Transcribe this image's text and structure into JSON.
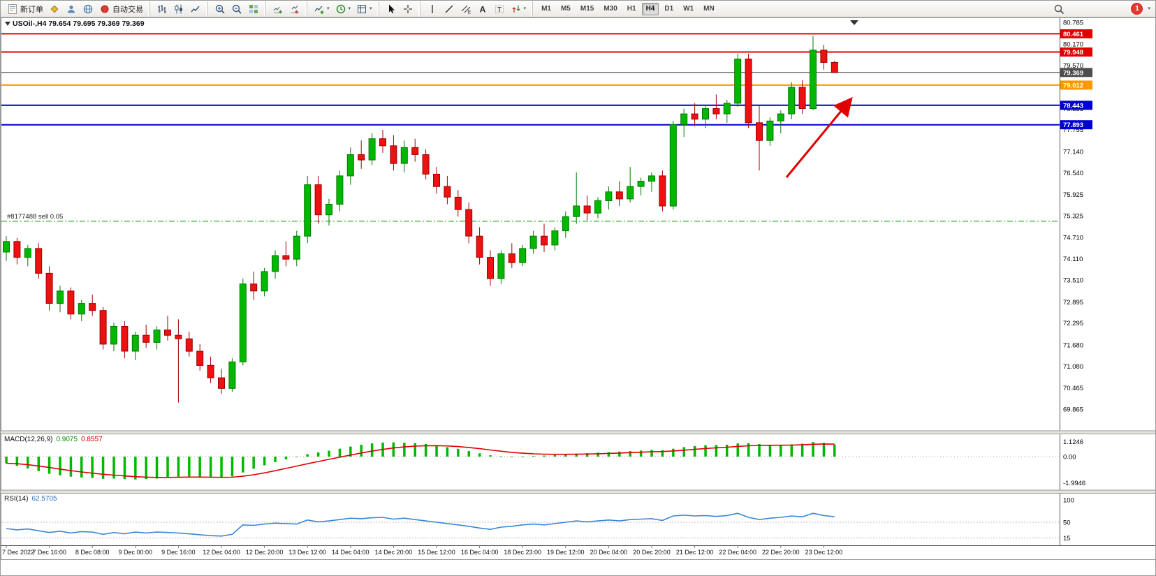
{
  "toolbar": {
    "buttons": [
      {
        "icon": "new-order",
        "label": "新订单",
        "group": 1
      },
      {
        "icon": "mql5-market",
        "group": 1
      },
      {
        "icon": "accounts",
        "group": 1
      },
      {
        "icon": "web-terminal",
        "group": 1
      },
      {
        "icon": "auto-trading",
        "label": "自动交易",
        "group": 1
      },
      {
        "icon": "bar-chart",
        "group": 2
      },
      {
        "icon": "candlestick-chart",
        "group": 2
      },
      {
        "icon": "line-chart",
        "group": 2
      },
      {
        "icon": "zoom-in",
        "group": 3
      },
      {
        "icon": "zoom-out",
        "group": 3
      },
      {
        "icon": "tile-windows",
        "group": 3
      },
      {
        "icon": "auto-scroll",
        "group": 4
      },
      {
        "icon": "chart-shift",
        "group": 4
      },
      {
        "icon": "indicators",
        "group": 5,
        "dropdown": true
      },
      {
        "icon": "periods",
        "group": 5,
        "dropdown": true
      },
      {
        "icon": "templates",
        "group": 5,
        "dropdown": true
      },
      {
        "icon": "cursor",
        "group": 6
      },
      {
        "icon": "crosshair",
        "group": 6
      },
      {
        "icon": "vertical-line",
        "group": 7
      },
      {
        "icon": "trendline",
        "group": 7
      },
      {
        "icon": "equidistant-channel",
        "group": 7
      },
      {
        "icon": "text",
        "group": 7
      },
      {
        "icon": "text-label",
        "group": 7
      },
      {
        "icon": "arrows",
        "group": 7,
        "dropdown": true
      }
    ],
    "timeframes": [
      "M1",
      "M5",
      "M15",
      "M30",
      "H1",
      "H4",
      "D1",
      "W1",
      "MN"
    ],
    "active_timeframe": "H4",
    "notification_count": "1"
  },
  "chart": {
    "title": "USOil-,H4 79.654 79.695 79.369 79.369",
    "position_label": "#8177488 sell 0.05",
    "price_axis_labels": [
      "80.785",
      "80.170",
      "79.570",
      "78.955",
      "78.355",
      "77.755",
      "77.140",
      "76.540",
      "75.925",
      "75.325",
      "74.710",
      "74.110",
      "73.510",
      "72.895",
      "72.295",
      "71.680",
      "71.080",
      "70.465",
      "69.865"
    ],
    "price_tags": [
      {
        "label": "80.461",
        "price": 80.461,
        "color": "#e00000"
      },
      {
        "label": "79.948",
        "price": 79.948,
        "color": "#e00000"
      },
      {
        "label": "79.369",
        "price": 79.369,
        "color": "#4d4d4d"
      },
      {
        "label": "79.012",
        "price": 79.012,
        "color": "#ff9800"
      },
      {
        "label": "78.443",
        "price": 78.443,
        "color": "#0000cd"
      },
      {
        "label": "77.893",
        "price": 77.893,
        "color": "#0000cd"
      }
    ],
    "hlines": [
      {
        "price": 80.461,
        "color": "#e00000",
        "width": 2,
        "dash": ""
      },
      {
        "price": 79.948,
        "color": "#e00000",
        "width": 2,
        "dash": ""
      },
      {
        "price": 79.369,
        "color": "#3d3d3d",
        "width": 1,
        "dash": ""
      },
      {
        "price": 79.012,
        "color": "#ff9800",
        "width": 2,
        "dash": ""
      },
      {
        "price": 78.443,
        "color": "#0000cd",
        "width": 2,
        "dash": ""
      },
      {
        "price": 77.893,
        "color": "#0000cd",
        "width": 2,
        "dash": ""
      },
      {
        "price": 75.17,
        "color": "#00a000",
        "width": 1,
        "dash": "8 3 2 3"
      }
    ],
    "colors": {
      "up": "#00b800",
      "up_stroke": "#007a00",
      "down": "#ee1111",
      "down_stroke": "#9e0000",
      "macd_hist": "#00b800",
      "macd_signal": "#e00000",
      "rsi_line": "#3a87d6",
      "arrow": "#e00000"
    }
  },
  "chart_data": {
    "type": "candlestick",
    "symbol": "USOil-",
    "timeframe": "H4",
    "label_step": 4,
    "x_labels": [
      "7 Dec 2022",
      "7 Dec 16:00",
      "8 Dec 08:00",
      "9 Dec 00:00",
      "9 Dec 16:00",
      "12 Dec 04:00",
      "12 Dec 20:00",
      "13 Dec 12:00",
      "14 Dec 04:00",
      "14 Dec 20:00",
      "15 Dec 12:00",
      "16 Dec 04:00",
      "18 Dec 23:00",
      "19 Dec 12:00",
      "20 Dec 04:00",
      "20 Dec 20:00",
      "21 Dec 12:00",
      "22 Dec 04:00",
      "22 Dec 20:00",
      "23 Dec 12:00"
    ],
    "ohlc": [
      [
        74.3,
        74.75,
        74.05,
        74.6
      ],
      [
        74.6,
        74.7,
        73.95,
        74.15
      ],
      [
        74.15,
        74.5,
        73.9,
        74.4
      ],
      [
        74.4,
        74.55,
        73.55,
        73.7
      ],
      [
        73.7,
        73.9,
        72.65,
        72.85
      ],
      [
        72.85,
        73.35,
        72.6,
        73.2
      ],
      [
        73.2,
        73.3,
        72.4,
        72.55
      ],
      [
        72.55,
        72.95,
        72.35,
        72.85
      ],
      [
        72.85,
        73.1,
        72.5,
        72.65
      ],
      [
        72.65,
        72.75,
        71.55,
        71.7
      ],
      [
        71.7,
        72.3,
        71.5,
        72.2
      ],
      [
        72.2,
        72.35,
        71.3,
        71.5
      ],
      [
        71.5,
        72.05,
        71.25,
        71.95
      ],
      [
        71.95,
        72.25,
        71.6,
        71.75
      ],
      [
        71.75,
        72.2,
        71.55,
        72.1
      ],
      [
        72.1,
        72.5,
        71.8,
        71.95
      ],
      [
        71.95,
        72.4,
        70.05,
        71.85
      ],
      [
        71.85,
        72.05,
        71.35,
        71.5
      ],
      [
        71.5,
        71.7,
        70.95,
        71.1
      ],
      [
        71.1,
        71.35,
        70.6,
        70.75
      ],
      [
        70.75,
        71.0,
        70.3,
        70.45
      ],
      [
        70.45,
        71.3,
        70.35,
        71.2
      ],
      [
        71.2,
        73.55,
        71.1,
        73.4
      ],
      [
        73.4,
        73.75,
        72.95,
        73.2
      ],
      [
        73.2,
        73.85,
        73.05,
        73.75
      ],
      [
        73.75,
        74.35,
        73.55,
        74.2
      ],
      [
        74.2,
        74.6,
        73.9,
        74.1
      ],
      [
        74.1,
        74.9,
        73.9,
        74.75
      ],
      [
        74.75,
        76.45,
        74.55,
        76.2
      ],
      [
        76.2,
        76.45,
        75.1,
        75.35
      ],
      [
        75.35,
        75.8,
        75.05,
        75.65
      ],
      [
        75.65,
        76.6,
        75.45,
        76.45
      ],
      [
        76.45,
        77.25,
        76.2,
        77.05
      ],
      [
        77.05,
        77.45,
        76.65,
        76.9
      ],
      [
        76.9,
        77.65,
        76.75,
        77.5
      ],
      [
        77.5,
        77.75,
        77.1,
        77.3
      ],
      [
        77.3,
        77.6,
        76.6,
        76.8
      ],
      [
        76.8,
        77.45,
        76.55,
        77.25
      ],
      [
        77.25,
        77.5,
        76.85,
        77.05
      ],
      [
        77.05,
        77.2,
        76.35,
        76.5
      ],
      [
        76.5,
        76.7,
        75.95,
        76.15
      ],
      [
        76.15,
        76.45,
        75.65,
        75.85
      ],
      [
        75.85,
        76.05,
        75.3,
        75.5
      ],
      [
        75.5,
        75.7,
        74.55,
        74.75
      ],
      [
        74.75,
        75.0,
        73.95,
        74.15
      ],
      [
        74.15,
        74.35,
        73.35,
        73.55
      ],
      [
        73.55,
        74.35,
        73.4,
        74.25
      ],
      [
        74.25,
        74.55,
        73.85,
        74.0
      ],
      [
        74.0,
        74.5,
        73.9,
        74.4
      ],
      [
        74.4,
        74.9,
        74.25,
        74.75
      ],
      [
        74.75,
        75.1,
        74.3,
        74.5
      ],
      [
        74.5,
        75.0,
        74.35,
        74.9
      ],
      [
        74.9,
        75.45,
        74.7,
        75.3
      ],
      [
        75.3,
        76.55,
        75.1,
        75.6
      ],
      [
        75.6,
        75.9,
        75.2,
        75.4
      ],
      [
        75.4,
        75.85,
        75.25,
        75.75
      ],
      [
        75.75,
        76.15,
        75.5,
        76.0
      ],
      [
        76.0,
        76.3,
        75.6,
        75.8
      ],
      [
        75.8,
        76.7,
        75.7,
        76.15
      ],
      [
        76.15,
        76.4,
        75.9,
        76.3
      ],
      [
        76.3,
        76.55,
        76.0,
        76.45
      ],
      [
        76.45,
        76.6,
        75.45,
        75.6
      ],
      [
        75.6,
        78.0,
        75.5,
        77.9
      ],
      [
        77.9,
        78.35,
        77.55,
        78.2
      ],
      [
        78.2,
        78.5,
        77.85,
        78.05
      ],
      [
        78.05,
        78.45,
        77.8,
        78.35
      ],
      [
        78.35,
        78.75,
        78.05,
        78.2
      ],
      [
        78.2,
        78.6,
        77.95,
        78.5
      ],
      [
        78.5,
        79.9,
        78.4,
        79.75
      ],
      [
        79.75,
        79.9,
        77.8,
        77.95
      ],
      [
        77.95,
        78.45,
        76.6,
        77.45
      ],
      [
        77.45,
        78.1,
        77.3,
        78.0
      ],
      [
        78.0,
        78.3,
        77.65,
        78.2
      ],
      [
        78.2,
        79.1,
        78.05,
        78.95
      ],
      [
        78.95,
        79.15,
        78.2,
        78.35
      ],
      [
        78.35,
        80.4,
        78.3,
        80.0
      ],
      [
        80.0,
        80.15,
        79.45,
        79.654
      ],
      [
        79.654,
        79.695,
        79.369,
        79.369
      ]
    ],
    "macd": {
      "label": "MACD(12,26,9)",
      "main_value": "0.9075",
      "signal_value": "0.8557",
      "scale_labels": [
        "1.1246",
        "0.00",
        "-1.9946"
      ],
      "histogram": [
        -0.5,
        -0.7,
        -0.9,
        -1.1,
        -1.3,
        -1.42,
        -1.52,
        -1.58,
        -1.62,
        -1.68,
        -1.66,
        -1.7,
        -1.73,
        -1.7,
        -1.66,
        -1.58,
        -1.52,
        -1.5,
        -1.55,
        -1.6,
        -1.62,
        -1.5,
        -1.2,
        -0.92,
        -0.66,
        -0.42,
        -0.2,
        -0.02,
        0.18,
        0.32,
        0.45,
        0.6,
        0.76,
        0.9,
        1.0,
        1.06,
        1.08,
        1.06,
        1.02,
        0.95,
        0.85,
        0.72,
        0.58,
        0.42,
        0.25,
        0.1,
        0.02,
        -0.02,
        0.0,
        0.04,
        0.08,
        0.12,
        0.17,
        0.22,
        0.26,
        0.3,
        0.34,
        0.38,
        0.42,
        0.46,
        0.5,
        0.48,
        0.6,
        0.72,
        0.8,
        0.86,
        0.88,
        0.9,
        1.0,
        1.02,
        0.95,
        0.9,
        0.88,
        0.92,
        0.98,
        1.1,
        1.05,
        0.9075
      ]
    },
    "rsi": {
      "label": "RSI(14)",
      "value": "62.5705",
      "scale_labels": [
        "100",
        "50",
        "15"
      ],
      "values": [
        36,
        33,
        35,
        31,
        27,
        30,
        26,
        29,
        28,
        23,
        27,
        24,
        28,
        26,
        28,
        27,
        26,
        24,
        22,
        20,
        19,
        23,
        44,
        43,
        46,
        48,
        47,
        46,
        55,
        51,
        53,
        56,
        59,
        58,
        60,
        61,
        57,
        59,
        56,
        53,
        50,
        47,
        44,
        41,
        37,
        34,
        39,
        41,
        44,
        46,
        44,
        47,
        50,
        53,
        51,
        53,
        55,
        53,
        56,
        57,
        58,
        54,
        64,
        66,
        64,
        65,
        63,
        65,
        70,
        61,
        56,
        59,
        61,
        64,
        62,
        70,
        65,
        62.57
      ]
    }
  }
}
